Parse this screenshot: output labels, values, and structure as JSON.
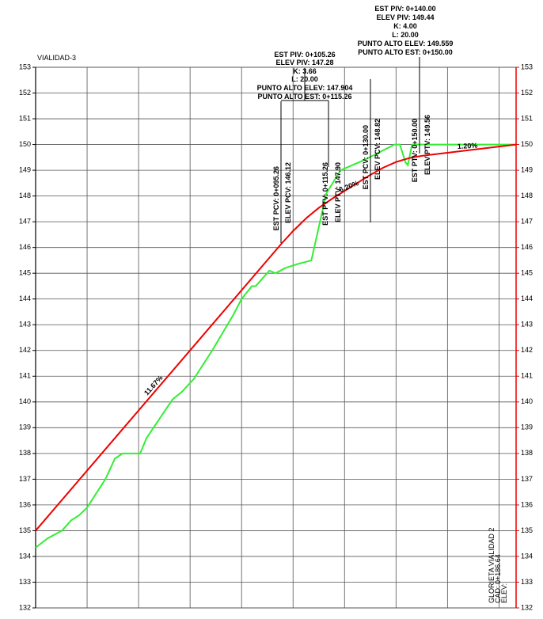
{
  "chart_data": {
    "type": "line",
    "title": "VIALIDAD-3",
    "xlim": [
      0,
      186.64
    ],
    "xticks": [
      20,
      40,
      60,
      80,
      100,
      120,
      140,
      160,
      180
    ],
    "ylim": [
      132,
      153
    ],
    "yticks": [
      132,
      133,
      134,
      135,
      136,
      137,
      138,
      139,
      140,
      141,
      142,
      143,
      144,
      145,
      146,
      147,
      148,
      149,
      150,
      151,
      152,
      153
    ],
    "grid": true,
    "series": [
      {
        "color": "#33ee33",
        "x": [
          0,
          4.6,
          10.2,
          13.8,
          16.9,
          20,
          27.1,
          30.8,
          33.8,
          40.6,
          43.1,
          53.2,
          56.9,
          61.5,
          68.6,
          76.9,
          80,
          84,
          85.5,
          90.8,
          93.2,
          96.9,
          101.5,
          107.1,
          109.8,
          112.9,
          118.5,
          127.7,
          139.4,
          141.5,
          143.7,
          144.6,
          146.2,
          186.64
        ],
        "values": [
          134.34,
          134.7,
          135.0,
          135.4,
          135.6,
          135.9,
          137.0,
          137.8,
          138.0,
          138.0,
          138.6,
          140.1,
          140.4,
          140.9,
          142.0,
          143.4,
          144.0,
          144.5,
          144.5,
          145.1,
          145.0,
          145.2,
          145.35,
          145.5,
          146.7,
          148.1,
          149.0,
          149.4,
          150.0,
          150.0,
          149.3,
          149.2,
          150.0,
          150.0
        ]
      },
      {
        "color": "#ee0000",
        "x": [
          0,
          95.26,
          100,
          105.26,
          110,
          115.26,
          130,
          135,
          140,
          145,
          150,
          186.64
        ],
        "values": [
          135.0,
          146.12,
          146.64,
          147.15,
          147.54,
          147.9,
          148.82,
          149.1,
          149.32,
          149.47,
          149.56,
          150.0
        ]
      }
    ],
    "annotations": [
      "EST PIV: 0+140.00",
      "ELEV PIV: 149.44",
      "K: 4.00",
      "L: 20.00",
      "PUNTO ALTO ELEV: 149.559",
      "PUNTO ALTO EST: 0+150.00",
      "EST PIV: 0+105.26",
      "ELEV PIV: 147.28",
      "K: 3.66",
      "L: 20.00",
      "PUNTO ALTO ELEV: 147.904",
      "PUNTO ALTO EST: 0+115.26",
      "EST PCV: 0+095.26",
      "ELEV PCV: 146.12",
      "EST PTV: 0+115.26",
      "ELEV PTV: 147.90",
      "EST PCV: 0+130.00",
      "ELEV PCV: 148.82",
      "EST PTV: 0+150.00",
      "ELEV PTV: 149.56",
      "11.67%",
      "6.20%",
      "1.20%",
      "GLORIETA VIALIDAD 2",
      "CAD: 0+186.64",
      "ELEV:"
    ]
  }
}
